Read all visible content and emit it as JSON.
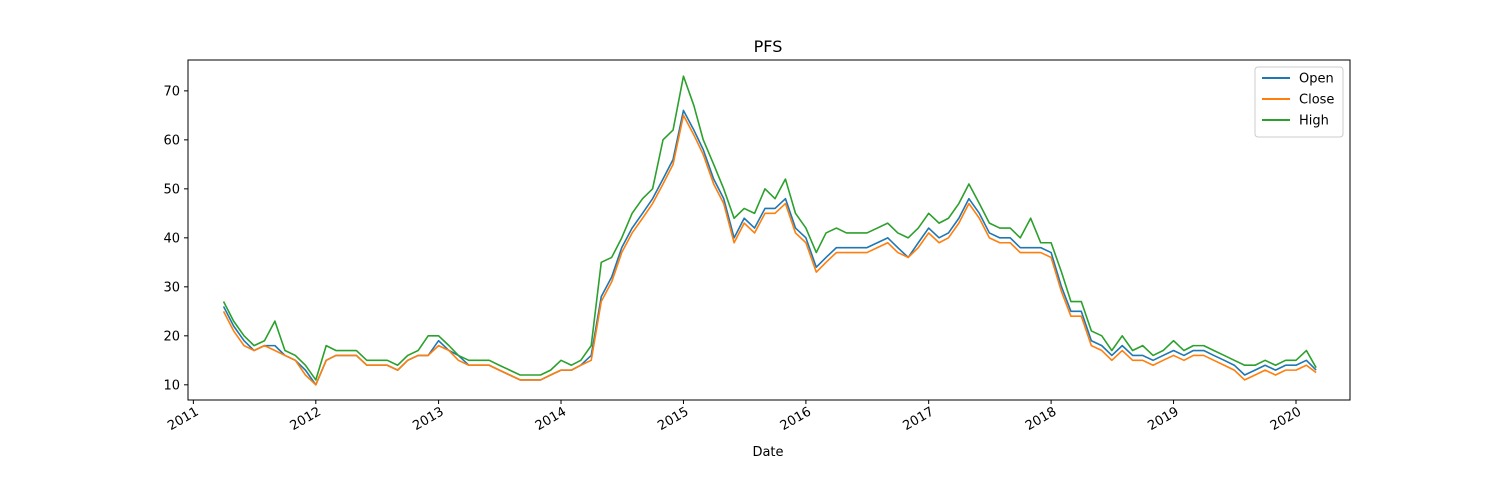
{
  "chart_data": {
    "type": "line",
    "title": "PFS",
    "xlabel": "Date",
    "ylabel": "",
    "xlim": [
      "2010-12-16",
      "2020-06-10"
    ],
    "ylim": [
      6.9,
      76.3
    ],
    "x_ticks": [
      "2011",
      "2012",
      "2013",
      "2014",
      "2015",
      "2016",
      "2017",
      "2018",
      "2019",
      "2020"
    ],
    "y_ticks": [
      10,
      20,
      30,
      40,
      50,
      60,
      70
    ],
    "grid": false,
    "legend_position": "top-right",
    "colors": {
      "Open": "#1f77b4",
      "Close": "#ff7f0e",
      "High": "#2ca02c"
    },
    "x": [
      "2011-04-01",
      "2011-05-01",
      "2011-06-01",
      "2011-07-01",
      "2011-08-01",
      "2011-09-01",
      "2011-10-01",
      "2011-11-01",
      "2011-12-01",
      "2012-01-01",
      "2012-02-01",
      "2012-03-01",
      "2012-04-01",
      "2012-05-01",
      "2012-06-01",
      "2012-07-01",
      "2012-08-01",
      "2012-09-01",
      "2012-10-01",
      "2012-11-01",
      "2012-12-01",
      "2013-01-01",
      "2013-02-01",
      "2013-03-01",
      "2013-04-01",
      "2013-05-01",
      "2013-06-01",
      "2013-07-01",
      "2013-08-01",
      "2013-09-01",
      "2013-10-01",
      "2013-11-01",
      "2013-12-01",
      "2014-01-01",
      "2014-02-01",
      "2014-03-01",
      "2014-04-01",
      "2014-05-01",
      "2014-06-01",
      "2014-07-01",
      "2014-08-01",
      "2014-09-01",
      "2014-10-01",
      "2014-11-01",
      "2014-12-01",
      "2015-01-01",
      "2015-02-01",
      "2015-03-01",
      "2015-04-01",
      "2015-05-01",
      "2015-06-01",
      "2015-07-01",
      "2015-08-01",
      "2015-09-01",
      "2015-10-01",
      "2015-11-01",
      "2015-12-01",
      "2016-01-01",
      "2016-02-01",
      "2016-03-01",
      "2016-04-01",
      "2016-05-01",
      "2016-06-01",
      "2016-07-01",
      "2016-08-01",
      "2016-09-01",
      "2016-10-01",
      "2016-11-01",
      "2016-12-01",
      "2017-01-01",
      "2017-02-01",
      "2017-03-01",
      "2017-04-01",
      "2017-05-01",
      "2017-06-01",
      "2017-07-01",
      "2017-08-01",
      "2017-09-01",
      "2017-10-01",
      "2017-11-01",
      "2017-12-01",
      "2018-01-01",
      "2018-02-01",
      "2018-03-01",
      "2018-04-01",
      "2018-05-01",
      "2018-06-01",
      "2018-07-01",
      "2018-08-01",
      "2018-09-01",
      "2018-10-01",
      "2018-11-01",
      "2018-12-01",
      "2019-01-01",
      "2019-02-01",
      "2019-03-01",
      "2019-04-01",
      "2019-05-01",
      "2019-06-01",
      "2019-07-01",
      "2019-08-01",
      "2019-09-01",
      "2019-10-01",
      "2019-11-01",
      "2019-12-01",
      "2020-01-01",
      "2020-02-01",
      "2020-03-01"
    ],
    "series": [
      {
        "name": "Open",
        "values": [
          26,
          22,
          19,
          17,
          18,
          18,
          16,
          15,
          13,
          10,
          15,
          16,
          16,
          16,
          14,
          14,
          14,
          13,
          15,
          16,
          16,
          19,
          17,
          16,
          14,
          14,
          14,
          13,
          12,
          11,
          11,
          11,
          12,
          13,
          13,
          14,
          16,
          28,
          32,
          38,
          42,
          45,
          48,
          52,
          56,
          66,
          62,
          58,
          52,
          48,
          40,
          44,
          42,
          46,
          46,
          48,
          42,
          40,
          34,
          36,
          38,
          38,
          38,
          38,
          39,
          40,
          38,
          36,
          39,
          42,
          40,
          41,
          44,
          48,
          45,
          41,
          40,
          40,
          38,
          38,
          38,
          37,
          30,
          25,
          25,
          19,
          18,
          16,
          18,
          16,
          16,
          15,
          16,
          17,
          16,
          17,
          17,
          16,
          15,
          14,
          12,
          13,
          14,
          13,
          14,
          14,
          15,
          13
        ]
      },
      {
        "name": "Close",
        "values": [
          25,
          21,
          18,
          17,
          18,
          17,
          16,
          15,
          12,
          10,
          15,
          16,
          16,
          16,
          14,
          14,
          14,
          13,
          15,
          16,
          16,
          18,
          17,
          15,
          14,
          14,
          14,
          13,
          12,
          11,
          11,
          11,
          12,
          13,
          13,
          14,
          15,
          27,
          31,
          37,
          41,
          44,
          47,
          51,
          55,
          65,
          61,
          57,
          51,
          47,
          39,
          43,
          41,
          45,
          45,
          47,
          41,
          39,
          33,
          35,
          37,
          37,
          37,
          37,
          38,
          39,
          37,
          36,
          38,
          41,
          39,
          40,
          43,
          47,
          44,
          40,
          39,
          39,
          37,
          37,
          37,
          36,
          29,
          24,
          24,
          18,
          17,
          15,
          17,
          15,
          15,
          14,
          15,
          16,
          15,
          16,
          16,
          15,
          14,
          13,
          11,
          12,
          13,
          12,
          13,
          13,
          14,
          12.5
        ]
      },
      {
        "name": "High",
        "values": [
          27,
          23,
          20,
          18,
          19,
          23,
          17,
          16,
          14,
          11,
          18,
          17,
          17,
          17,
          15,
          15,
          15,
          14,
          16,
          17,
          20,
          20,
          18,
          16,
          15,
          15,
          15,
          14,
          13,
          12,
          12,
          12,
          13,
          15,
          14,
          15,
          18,
          35,
          36,
          40,
          45,
          48,
          50,
          60,
          62,
          73,
          67,
          60,
          55,
          50,
          44,
          46,
          45,
          50,
          48,
          52,
          45,
          42,
          37,
          41,
          42,
          41,
          41,
          41,
          42,
          43,
          41,
          40,
          42,
          45,
          43,
          44,
          47,
          51,
          47,
          43,
          42,
          42,
          40,
          44,
          39,
          39,
          33,
          27,
          27,
          21,
          20,
          17,
          20,
          17,
          18,
          16,
          17,
          19,
          17,
          18,
          18,
          17,
          16,
          15,
          14,
          14,
          15,
          14,
          15,
          15,
          17,
          13.5
        ]
      }
    ]
  }
}
